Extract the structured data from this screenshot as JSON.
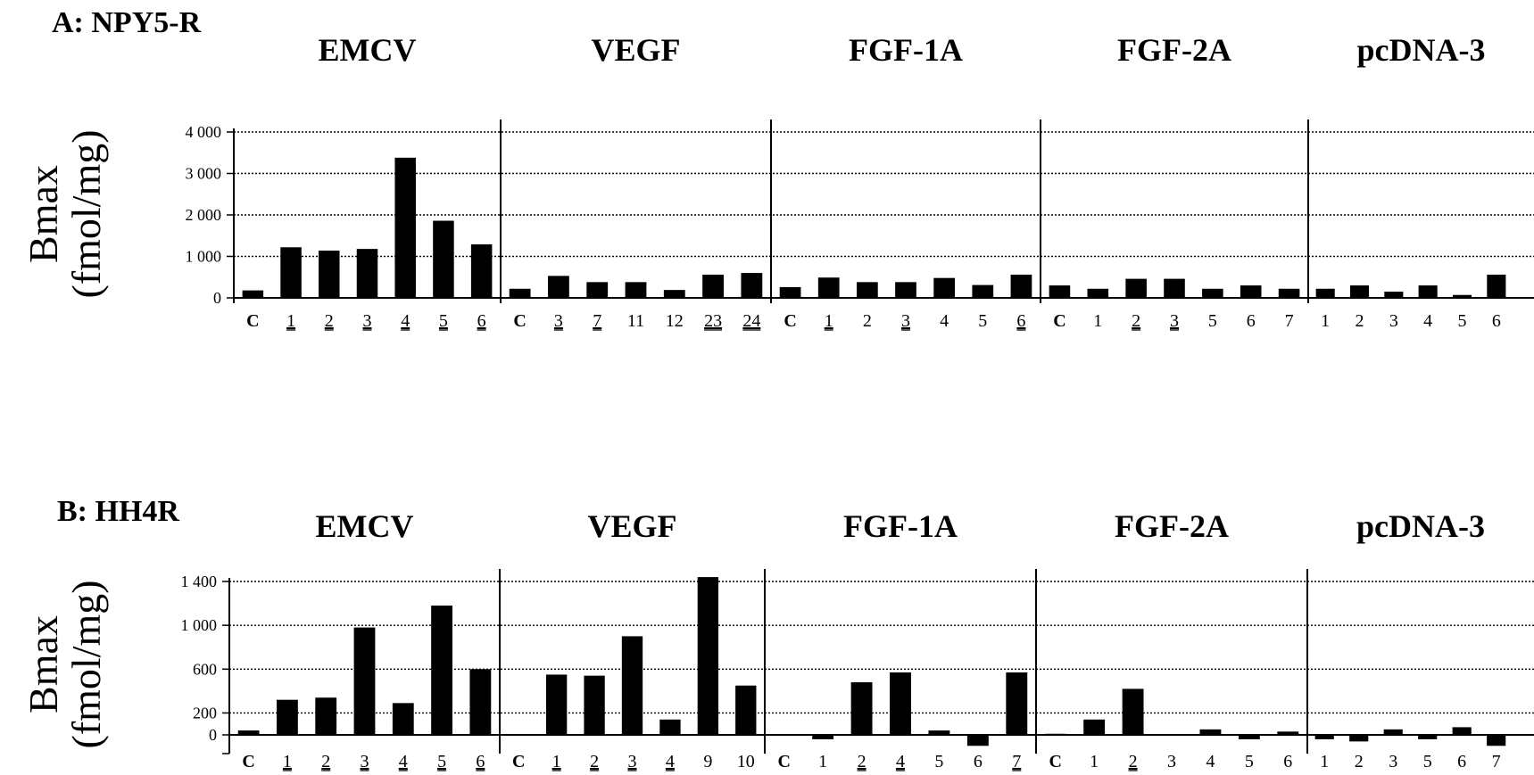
{
  "chart_data": [
    {
      "type": "bar",
      "panel_label": "A: NPY5-R",
      "ylabel": [
        "Bmax",
        "(fmol/mg)"
      ],
      "ylim": [
        0,
        4000
      ],
      "yticks": [
        {
          "value": 0,
          "label": "0"
        },
        {
          "value": 1000,
          "label": "1 000"
        },
        {
          "value": 2000,
          "label": "2 000"
        },
        {
          "value": 3000,
          "label": "3 000"
        },
        {
          "value": 4000,
          "label": "4 000"
        }
      ],
      "grid": "horizontal dotted",
      "groups": [
        {
          "name": "EMCV",
          "categories": [
            "C",
            "1",
            "2",
            "3",
            "4",
            "5",
            "6"
          ],
          "underlined": [
            false,
            true,
            true,
            true,
            true,
            true,
            true
          ],
          "values": [
            180,
            1220,
            1140,
            1180,
            3380,
            1860,
            1290
          ]
        },
        {
          "name": "VEGF",
          "categories": [
            "C",
            "3",
            "7",
            "11",
            "12",
            "23",
            "24"
          ],
          "underlined": [
            false,
            true,
            true,
            false,
            false,
            true,
            true
          ],
          "values": [
            220,
            530,
            380,
            380,
            190,
            560,
            600
          ]
        },
        {
          "name": "FGF-1A",
          "categories": [
            "C",
            "1",
            "2",
            "3",
            "4",
            "5",
            "6"
          ],
          "underlined": [
            false,
            true,
            false,
            true,
            false,
            false,
            true
          ],
          "values": [
            260,
            490,
            380,
            380,
            480,
            310,
            560
          ]
        },
        {
          "name": "FGF-2A",
          "categories": [
            "C",
            "1",
            "2",
            "3",
            "5",
            "6",
            "7"
          ],
          "underlined": [
            false,
            false,
            true,
            true,
            false,
            false,
            false
          ],
          "values": [
            300,
            220,
            460,
            460,
            220,
            300,
            220
          ]
        },
        {
          "name": "pcDNA-3",
          "categories": [
            "1",
            "2",
            "3",
            "4",
            "5",
            "6"
          ],
          "underlined": [
            false,
            false,
            false,
            false,
            false,
            false
          ],
          "values": [
            220,
            300,
            150,
            300,
            70,
            560
          ]
        }
      ]
    },
    {
      "type": "bar",
      "panel_label": "B: HH4R",
      "ylabel": [
        "Bmax",
        "(fmol/mg)"
      ],
      "ylim": [
        -200,
        1400
      ],
      "yticks": [
        {
          "value": 0,
          "label": "0"
        },
        {
          "value": 200,
          "label": "200"
        },
        {
          "value": 600,
          "label": "600"
        },
        {
          "value": 1000,
          "label": "1 000"
        },
        {
          "value": 1400,
          "label": "1 400"
        }
      ],
      "grid": "horizontal dotted",
      "groups": [
        {
          "name": "EMCV",
          "categories": [
            "C",
            "1",
            "2",
            "3",
            "4",
            "5",
            "6"
          ],
          "underlined": [
            false,
            true,
            true,
            true,
            true,
            true,
            true
          ],
          "values": [
            40,
            320,
            340,
            980,
            290,
            1180,
            600
          ]
        },
        {
          "name": "VEGF",
          "categories": [
            "C",
            "1",
            "2",
            "3",
            "4",
            "9",
            "10"
          ],
          "underlined": [
            false,
            true,
            true,
            true,
            true,
            false,
            false
          ],
          "values": [
            0,
            550,
            540,
            900,
            140,
            1440,
            450
          ]
        },
        {
          "name": "FGF-1A",
          "categories": [
            "C",
            "1",
            "2",
            "4",
            "5",
            "6",
            "7"
          ],
          "underlined": [
            false,
            false,
            true,
            true,
            false,
            false,
            true
          ],
          "values": [
            0,
            -40,
            480,
            570,
            40,
            -100,
            570
          ]
        },
        {
          "name": "FGF-2A",
          "categories": [
            "C",
            "1",
            "2",
            "3",
            "4",
            "5",
            "6"
          ],
          "underlined": [
            false,
            false,
            true,
            false,
            false,
            false,
            false
          ],
          "values": [
            10,
            140,
            420,
            0,
            50,
            -40,
            30
          ]
        },
        {
          "name": "pcDNA-3",
          "categories": [
            "1",
            "2",
            "3",
            "5",
            "6",
            "7"
          ],
          "underlined": [
            false,
            false,
            false,
            false,
            false,
            false
          ],
          "values": [
            -40,
            -60,
            50,
            -40,
            70,
            -100
          ]
        }
      ]
    }
  ]
}
